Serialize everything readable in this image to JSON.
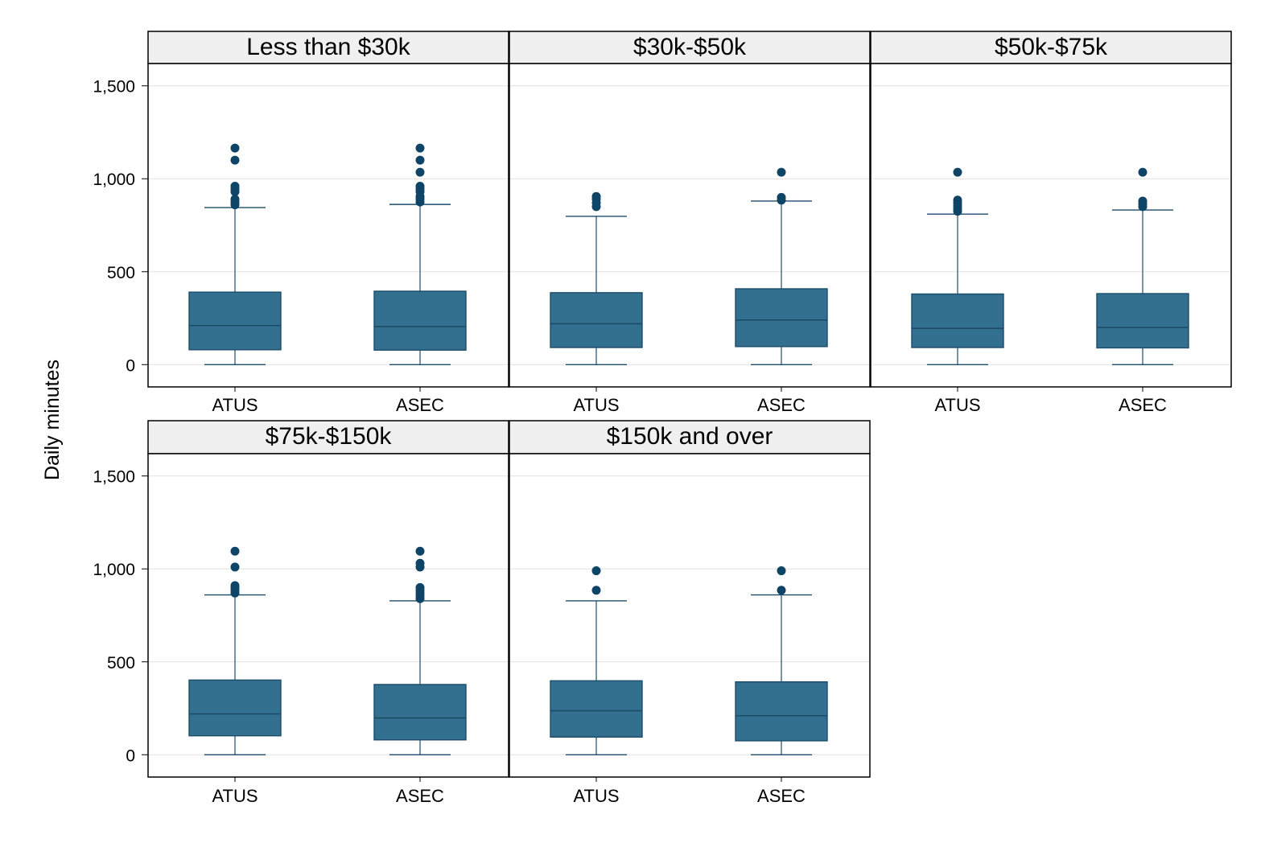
{
  "chart_data": {
    "type": "boxplot",
    "ylabel": "Daily minutes",
    "ylim": [
      -120,
      1620
    ],
    "yticks": [
      0,
      500,
      1000,
      1500
    ],
    "ytick_labels": [
      "0",
      "500",
      "1,000",
      "1,500"
    ],
    "grid": true,
    "categories": [
      "ATUS",
      "ASEC"
    ],
    "colors": {
      "box_fill": "#336f8e",
      "box_edge": "#1b4d6b",
      "outlier": "#0e4466",
      "strip_fill": "#f0f0f0",
      "gridline": "#e1e1e1"
    },
    "panels": [
      {
        "title": "Less than $30k",
        "boxes": [
          {
            "category": "ATUS",
            "whisker_low": 0,
            "q1": 80,
            "median": 210,
            "q3": 390,
            "whisker_high": 845,
            "outliers": [
              860,
              875,
              890,
              930,
              945,
              960,
              1100,
              1165
            ]
          },
          {
            "category": "ASEC",
            "whisker_low": 0,
            "q1": 78,
            "median": 205,
            "q3": 395,
            "whisker_high": 862,
            "outliers": [
              875,
              890,
              905,
              930,
              945,
              960,
              1035,
              1100,
              1165
            ]
          }
        ]
      },
      {
        "title": "$30k-$50k",
        "boxes": [
          {
            "category": "ATUS",
            "whisker_low": 0,
            "q1": 92,
            "median": 220,
            "q3": 387,
            "whisker_high": 798,
            "outliers": [
              850,
              870,
              890,
              905
            ]
          },
          {
            "category": "ASEC",
            "whisker_low": 0,
            "q1": 97,
            "median": 240,
            "q3": 408,
            "whisker_high": 880,
            "outliers": [
              885,
              900,
              1035
            ]
          }
        ]
      },
      {
        "title": "$50k-$75k",
        "boxes": [
          {
            "category": "ATUS",
            "whisker_low": 0,
            "q1": 92,
            "median": 195,
            "q3": 380,
            "whisker_high": 810,
            "outliers": [
              825,
              840,
              855,
              870,
              885,
              1035
            ]
          },
          {
            "category": "ASEC",
            "whisker_low": 0,
            "q1": 90,
            "median": 200,
            "q3": 382,
            "whisker_high": 832,
            "outliers": [
              850,
              865,
              880,
              1035
            ]
          }
        ]
      },
      {
        "title": "$75k-$150k",
        "boxes": [
          {
            "category": "ATUS",
            "whisker_low": 0,
            "q1": 102,
            "median": 220,
            "q3": 402,
            "whisker_high": 860,
            "outliers": [
              870,
              885,
              900,
              910,
              1010,
              1095
            ]
          },
          {
            "category": "ASEC",
            "whisker_low": 0,
            "q1": 80,
            "median": 198,
            "q3": 378,
            "whisker_high": 828,
            "outliers": [
              840,
              855,
              870,
              885,
              900,
              1010,
              1030,
              1095
            ]
          }
        ]
      },
      {
        "title": "$150k and over",
        "boxes": [
          {
            "category": "ATUS",
            "whisker_low": 0,
            "q1": 95,
            "median": 237,
            "q3": 398,
            "whisker_high": 828,
            "outliers": [
              885,
              990
            ]
          },
          {
            "category": "ASEC",
            "whisker_low": 0,
            "q1": 75,
            "median": 210,
            "q3": 392,
            "whisker_high": 860,
            "outliers": [
              885,
              990
            ]
          }
        ]
      }
    ]
  }
}
